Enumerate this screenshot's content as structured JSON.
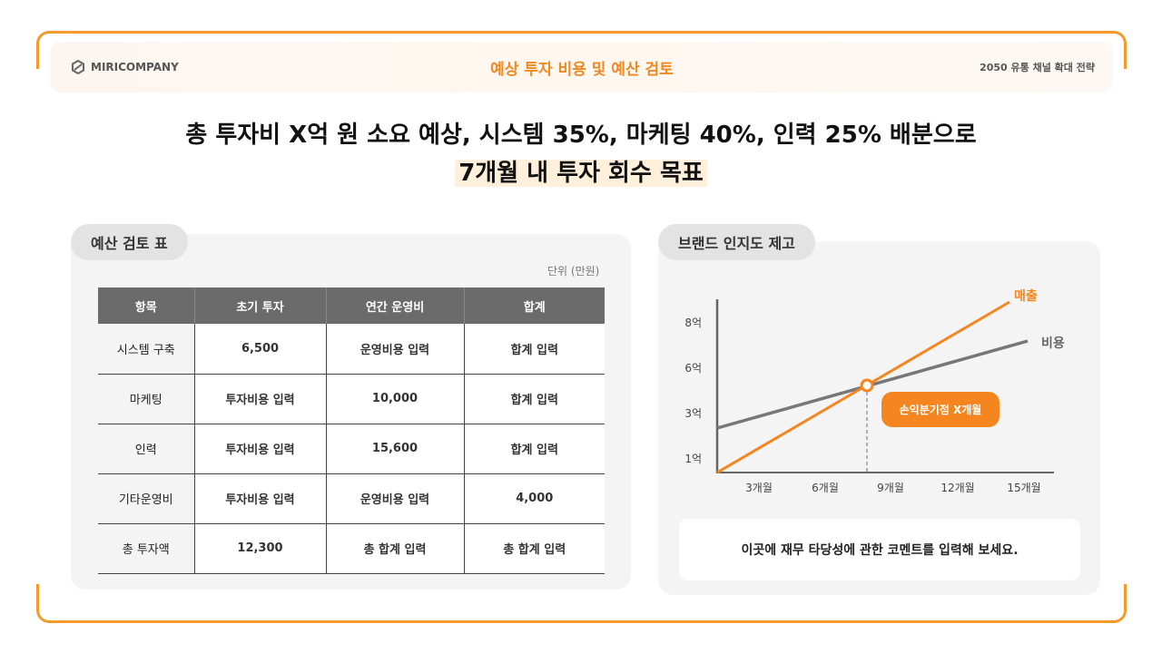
{
  "header": {
    "logo": "MIRICOMPANY",
    "title": "예상 투자 비용 및 예산 검토",
    "right": "2050 유통 채널 확대 전략"
  },
  "headline": {
    "line1": "총 투자비 X억 원 소요 예상, 시스템 35%, 마케팅 40%, 인력 25% 배분으로",
    "line2": "7개월 내 투자 회수 목표"
  },
  "budget": {
    "tab": "예산 검토 표",
    "unit": "단위 (만원)",
    "columns": [
      "항목",
      "초기 투자",
      "연간 운영비",
      "합계"
    ],
    "rows": [
      [
        "시스템 구축",
        "6,500",
        "운영비용 입력",
        "합계 입력"
      ],
      [
        "마케팅",
        "투자비용 입력",
        "10,000",
        "합계 입력"
      ],
      [
        "인력",
        "투자비용 입력",
        "15,600",
        "합계 입력"
      ],
      [
        "기타운영비",
        "투자비용 입력",
        "운영비용 입력",
        "4,000"
      ],
      [
        "총 투자액",
        "12,300",
        "총 합계 입력",
        "총 합계 입력"
      ]
    ]
  },
  "brand": {
    "tab": "브랜드 인지도 제고",
    "comment": "이곳에 재무 타당성에 관한 코멘트를 입력해 보세요."
  },
  "chart_data": {
    "type": "line",
    "x_ticks": [
      "3개월",
      "6개월",
      "9개월",
      "12개월",
      "15개월"
    ],
    "y_ticks": [
      "1억",
      "3억",
      "6억",
      "8억"
    ],
    "series": [
      {
        "name": "매출",
        "color": "#f5861f"
      },
      {
        "name": "비용",
        "color": "#777777"
      }
    ],
    "annotation": "손익분기점 X개월",
    "colors": {
      "accent": "#f5861f",
      "cost": "#777777"
    }
  }
}
